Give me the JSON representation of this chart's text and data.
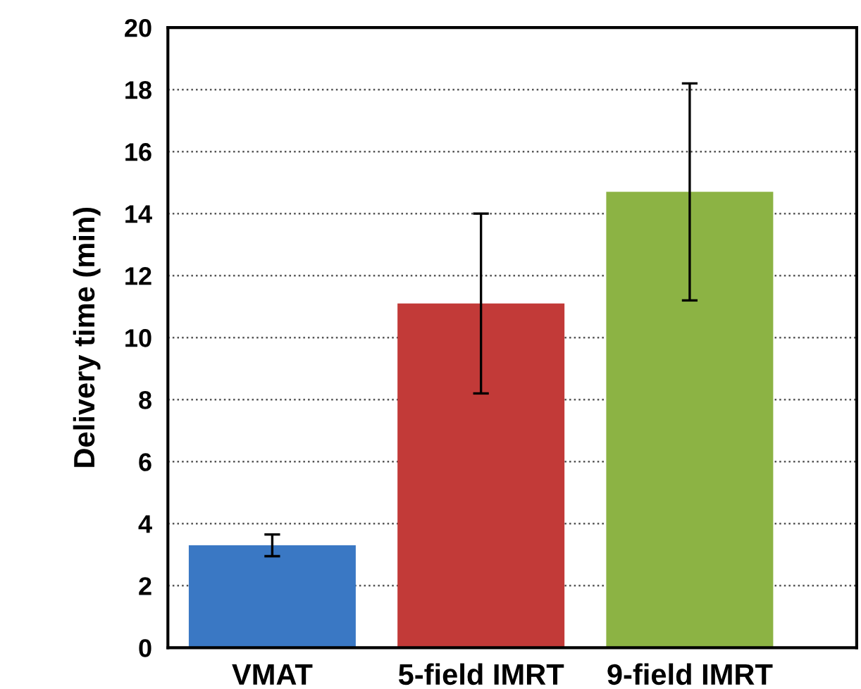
{
  "chart_data": {
    "type": "bar",
    "ylabel": "Delivery time (min)",
    "categories": [
      "VMAT",
      "5-field IMRT",
      "9-field IMRT"
    ],
    "values": [
      3.3,
      11.1,
      14.7
    ],
    "errors": [
      0.35,
      2.9,
      3.5
    ],
    "colors": [
      "#3a78c4",
      "#c23a38",
      "#8cb344"
    ],
    "ylim": [
      0,
      20
    ],
    "yticks": [
      0,
      2,
      4,
      6,
      8,
      10,
      12,
      14,
      16,
      18,
      20
    ],
    "grid": "y"
  }
}
